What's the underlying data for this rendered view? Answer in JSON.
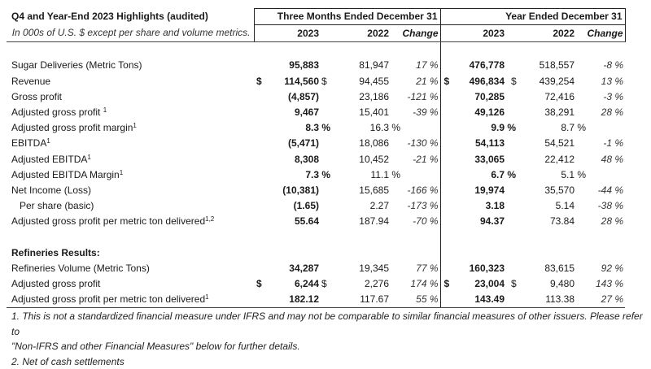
{
  "header": {
    "title": "Q4 and Year-End 2023 Highlights (audited)",
    "subtitle": "In 000s of U.S. $ except per share and volume metrics.",
    "group1": "Three Months Ended December 31",
    "group2": "Year Ended December 31",
    "col_2023": "2023",
    "col_2022": "2022",
    "col_change": "Change"
  },
  "rows": [
    {
      "label": "Sugar Deliveries (Metric Tons)",
      "sup": "",
      "q23": "95,883",
      "q22": "81,947",
      "qchg": "17 %",
      "y23": "476,778",
      "y22": "518,557",
      "ychg": "-8 %"
    },
    {
      "label": "Revenue",
      "sup": "",
      "dollar": "$",
      "q23": "114,560",
      "q22": "94,455",
      "qchg": "21 %",
      "y23": "496,834",
      "y22": "439,254",
      "ychg": "13 %"
    },
    {
      "label": "Gross profit",
      "sup": "",
      "q23": "(4,857)",
      "q22": "23,186",
      "qchg": "-121 %",
      "y23": "70,285",
      "y22": "72,416",
      "ychg": "-3 %"
    },
    {
      "label": "Adjusted gross profit ",
      "sup": "1",
      "q23": "9,467",
      "q22": "15,401",
      "qchg": "-39 %",
      "y23": "49,126",
      "y22": "38,291",
      "ychg": "28 %"
    },
    {
      "label": "Adjusted gross profit margin",
      "sup": "1",
      "q23": "8.3 %",
      "q22": "16.3 %",
      "qchg": "",
      "y23": "9.9 %",
      "y22": "8.7 %",
      "ychg": "",
      "pct": true
    },
    {
      "label": "EBITDA",
      "sup": "1",
      "q23": "(5,471)",
      "q22": "18,086",
      "qchg": "-130 %",
      "y23": "54,113",
      "y22": "54,521",
      "ychg": "-1 %"
    },
    {
      "label": "Adjusted EBITDA",
      "sup": "1",
      "q23": "8,308",
      "q22": "10,452",
      "qchg": "-21 %",
      "y23": "33,065",
      "y22": "22,412",
      "ychg": "48 %"
    },
    {
      "label": "Adjusted EBITDA Margin",
      "sup": "1",
      "q23": "7.3 %",
      "q22": "11.1 %",
      "qchg": "",
      "y23": "6.7 %",
      "y22": "5.1 %",
      "ychg": "",
      "pct": true
    },
    {
      "label": "Net Income (Loss)",
      "sup": "",
      "q23": "(10,381)",
      "q22": "15,685",
      "qchg": "-166 %",
      "y23": "19,974",
      "y22": "35,570",
      "ychg": "-44 %"
    },
    {
      "label": "Per share (basic)",
      "sup": "",
      "sub": true,
      "q23": "(1.65)",
      "q22": "2.27",
      "qchg": "-173 %",
      "y23": "3.18",
      "y22": "5.14",
      "ychg": "-38 %"
    },
    {
      "label": "Adjusted gross profit per metric ton delivered",
      "sup": "1,2",
      "q23": "55.64",
      "q22": "187.94",
      "qchg": "-70 %",
      "y23": "94.37",
      "y22": "73.84",
      "ychg": "28 %"
    }
  ],
  "refineries": {
    "heading": "Refineries Results:",
    "rows": [
      {
        "label": "Refineries Volume (Metric Tons)",
        "sup": "",
        "q23": "34,287",
        "q22": "19,345",
        "qchg": "77 %",
        "y23": "160,323",
        "y22": "83,615",
        "ychg": "92 %"
      },
      {
        "label": "Adjusted gross profit",
        "sup": "",
        "dollar": "$",
        "q23": "6,244",
        "q22": "2,276",
        "qchg": "174 %",
        "y23": "23,004",
        "y22": "9,480",
        "ychg": "143 %"
      },
      {
        "label": "Adjusted gross profit per metric ton delivered",
        "sup": "1",
        "q23": "182.12",
        "q22": "117.67",
        "qchg": "55 %",
        "y23": "143.49",
        "y22": "113.38",
        "ychg": "27 %"
      }
    ]
  },
  "notes": [
    "1.  This is not a standardized financial measure under IFRS and may not be comparable to similar financial measures of other issuers. Please refer to",
    "\"Non-IFRS and other Financial Measures\" below for further details.",
    "2. Net of cash settlements"
  ]
}
